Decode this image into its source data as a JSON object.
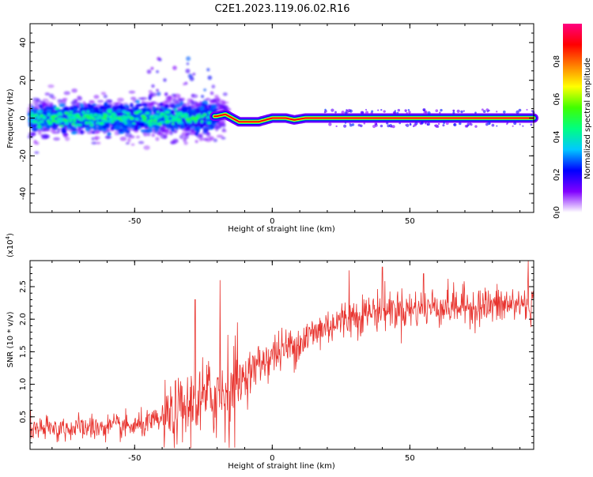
{
  "figure": {
    "title": "C2E1.2023.119.06.02.R16"
  },
  "chart_data": [
    {
      "type": "heatmap",
      "name": "spectrogram",
      "xlabel": "Height of straight line (km)",
      "ylabel": "Frequency (Hz)",
      "xlim": [
        -88,
        95
      ],
      "ylim": [
        -50,
        50
      ],
      "xticks": [
        -50,
        0,
        50
      ],
      "xtick_labels": [
        "-50",
        "0",
        "50"
      ],
      "yticks": [
        -40,
        -20,
        0,
        20,
        40
      ],
      "ytick_labels": [
        "-40",
        "-20",
        "0",
        "20",
        "40"
      ],
      "noisy_region_end": -22,
      "transition_end": 18,
      "ridge": [
        [
          -88,
          0
        ],
        [
          -60,
          0
        ],
        [
          -30,
          0
        ],
        [
          -20,
          1
        ],
        [
          -17,
          2
        ],
        [
          -12,
          -2
        ],
        [
          -5,
          -2
        ],
        [
          0,
          0
        ],
        [
          5,
          0
        ],
        [
          8,
          -1
        ],
        [
          12,
          0
        ],
        [
          18,
          0
        ],
        [
          50,
          0
        ],
        [
          95,
          0
        ]
      ],
      "colorbar": {
        "label": "Normalized spectral amplitude",
        "range": [
          0,
          1
        ],
        "ticks": [
          0.0,
          0.2,
          0.4,
          0.6,
          0.8
        ],
        "tick_labels": [
          "0.0",
          "0.2",
          "0.4",
          "0.6",
          "0.8"
        ],
        "colormap": [
          "#ffffff",
          "#8000ff",
          "#0000ff",
          "#00c8ff",
          "#00ff80",
          "#40ff00",
          "#ffff00",
          "#ff8000",
          "#ff0000",
          "#ff0080"
        ]
      }
    },
    {
      "type": "line",
      "name": "snr",
      "xlabel": "Height of straight line (km)",
      "ylabel": "SNR (10 * v/v)",
      "yscale_label": "(x10",
      "yscale_exp": "4",
      "yscale_close": ")",
      "xlim": [
        -88,
        95
      ],
      "ylim": [
        0,
        2.9
      ],
      "xticks": [
        -50,
        0,
        50
      ],
      "xtick_labels": [
        "-50",
        "0",
        "50"
      ],
      "yticks": [
        0.5,
        1.0,
        1.5,
        2.0,
        2.5
      ],
      "ytick_labels": [
        "0.5",
        "1.0",
        "1.5",
        "2.0",
        "2.5"
      ],
      "color": "#e8332e",
      "trend": [
        [
          -88,
          0.3
        ],
        [
          -70,
          0.33
        ],
        [
          -50,
          0.35
        ],
        [
          -40,
          0.45
        ],
        [
          -30,
          0.65
        ],
        [
          -20,
          0.85
        ],
        [
          -12,
          1.05
        ],
        [
          -5,
          1.3
        ],
        [
          0,
          1.45
        ],
        [
          10,
          1.65
        ],
        [
          20,
          1.9
        ],
        [
          30,
          2.05
        ],
        [
          40,
          2.15
        ],
        [
          50,
          2.15
        ],
        [
          60,
          2.2
        ],
        [
          70,
          2.2
        ],
        [
          80,
          2.2
        ],
        [
          95,
          2.25
        ]
      ],
      "peaks": [
        [
          -28,
          2.3
        ],
        [
          -19,
          2.6
        ],
        [
          28,
          2.75
        ],
        [
          40,
          2.8
        ],
        [
          55,
          2.7
        ],
        [
          93,
          2.95
        ]
      ],
      "samples": 1100
    }
  ]
}
